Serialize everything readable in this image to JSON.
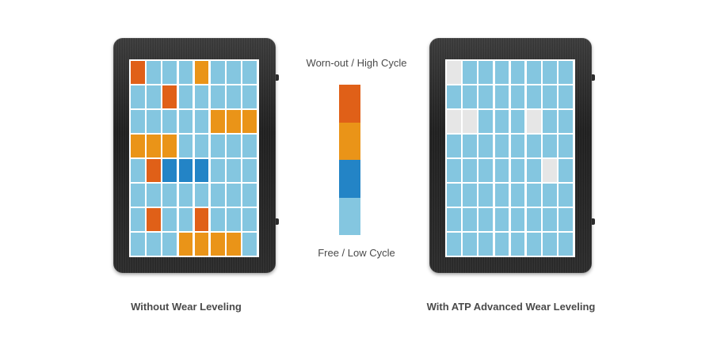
{
  "legend": {
    "top_label": "Worn-out / High Cycle",
    "bottom_label": "Free / Low Cycle",
    "segments": [
      "high",
      "mid",
      "low",
      "free"
    ]
  },
  "colors": {
    "high": "#e06018",
    "mid": "#ea9418",
    "low": "#2384c6",
    "free": "#84c6e0",
    "retired": "#e6e6e6",
    "ssd_body": "#2a2a2a"
  },
  "left_panel": {
    "caption": "Without Wear Leveling",
    "blocks": [
      [
        "high",
        "free",
        "free",
        "free",
        "mid",
        "free",
        "free",
        "free"
      ],
      [
        "free",
        "free",
        "high",
        "free",
        "free",
        "free",
        "free",
        "free"
      ],
      [
        "free",
        "free",
        "free",
        "free",
        "free",
        "mid",
        "mid",
        "mid"
      ],
      [
        "mid",
        "mid",
        "mid",
        "free",
        "free",
        "free",
        "free",
        "free"
      ],
      [
        "free",
        "high",
        "low",
        "low",
        "low",
        "free",
        "free",
        "free"
      ],
      [
        "free",
        "free",
        "free",
        "free",
        "free",
        "free",
        "free",
        "free"
      ],
      [
        "free",
        "high",
        "free",
        "free",
        "high",
        "free",
        "free",
        "free"
      ],
      [
        "free",
        "free",
        "free",
        "mid",
        "mid",
        "mid",
        "mid",
        "free"
      ]
    ]
  },
  "right_panel": {
    "caption": "With ATP Advanced Wear Leveling",
    "blocks": [
      [
        "retired",
        "free",
        "free",
        "free",
        "free",
        "free",
        "free",
        "free"
      ],
      [
        "free",
        "free",
        "free",
        "free",
        "free",
        "free",
        "free",
        "free"
      ],
      [
        "retired",
        "retired",
        "free",
        "free",
        "free",
        "retired",
        "free",
        "free"
      ],
      [
        "free",
        "free",
        "free",
        "free",
        "free",
        "free",
        "free",
        "free"
      ],
      [
        "free",
        "free",
        "free",
        "free",
        "free",
        "free",
        "retired",
        "free"
      ],
      [
        "free",
        "free",
        "free",
        "free",
        "free",
        "free",
        "free",
        "free"
      ],
      [
        "free",
        "free",
        "free",
        "free",
        "free",
        "free",
        "free",
        "free"
      ],
      [
        "free",
        "free",
        "free",
        "free",
        "free",
        "free",
        "free",
        "free"
      ]
    ]
  }
}
